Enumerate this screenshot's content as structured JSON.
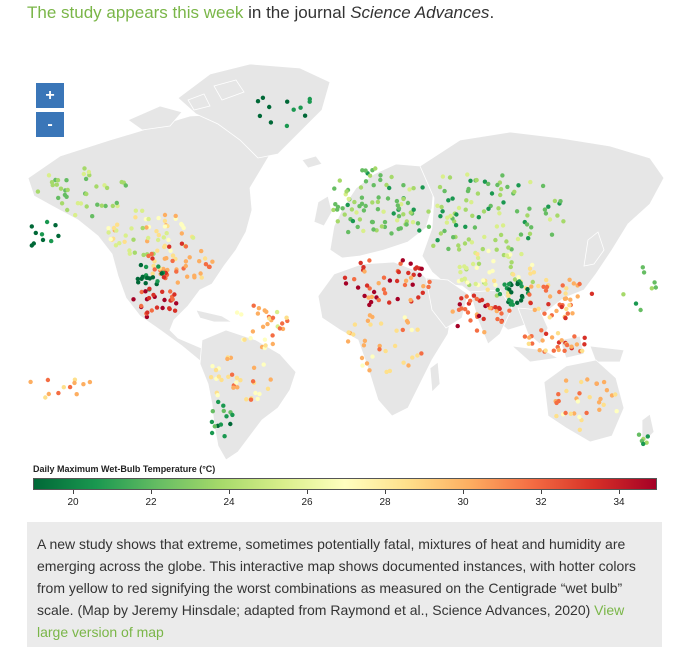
{
  "intro": {
    "link_text": "The study appears this week",
    "text": " in the journal ",
    "journal": "Science Advances",
    "end": "."
  },
  "map": {
    "zoom_in_label": "+",
    "zoom_out_label": "-",
    "land_color": "#e6e6e6",
    "border_color": "#ffffff",
    "ocean_color": "#ffffff"
  },
  "legend": {
    "title": "Daily Maximum Wet-Bulb Temperature (°C)",
    "ticks": [
      "20",
      "22",
      "24",
      "26",
      "28",
      "30",
      "32",
      "34"
    ],
    "colors": [
      "#006837",
      "#1a9850",
      "#66bd63",
      "#a6d96a",
      "#d9ef8b",
      "#ffffbf",
      "#fee08b",
      "#fdae61",
      "#f46d43",
      "#d73027",
      "#a50026"
    ]
  },
  "caption": {
    "text": "A new study shows that extreme, sometimes potentially fatal, mixtures of heat and humidity are emerging across the globe. This interactive map shows documented instances, with hotter colors from yellow to red signifying the worst combinations as measured on the Centigrade “wet bulb” scale. (Map by Jeremy Hinsdale; adapted from Raymond et al., Science Advances, 2020) ",
    "link_text": "View large version of map"
  }
}
